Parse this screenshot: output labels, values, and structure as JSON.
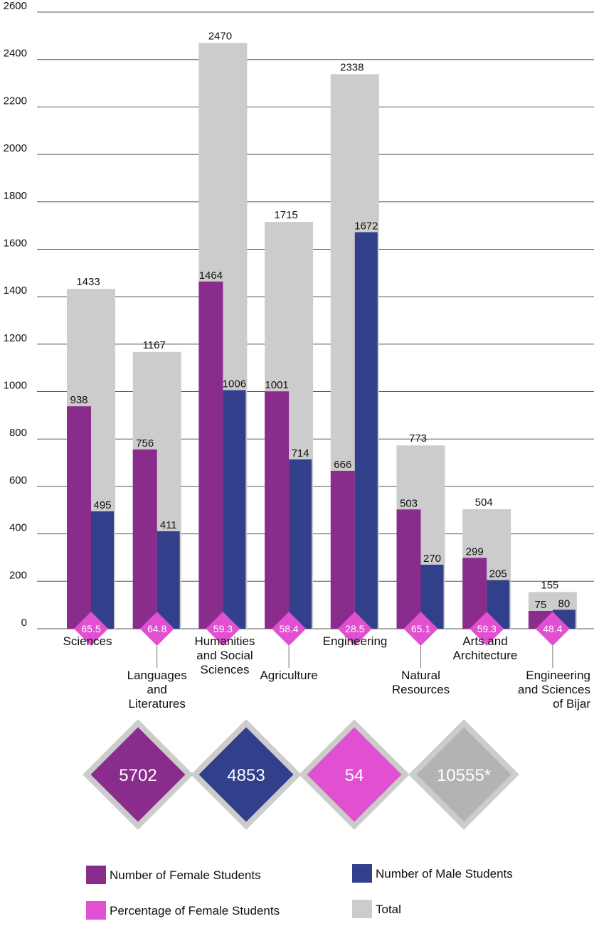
{
  "chart_data": {
    "type": "bar",
    "ylim": [
      0,
      2600
    ],
    "y_ticks": [
      "0",
      "200",
      "400",
      "600",
      "800",
      "1000",
      "1200",
      "1400",
      "1600",
      "1800",
      "2000",
      "2200",
      "2400",
      "2600"
    ],
    "grid": true,
    "categories": [
      [
        "Sciences"
      ],
      [
        "Languages",
        "and",
        "Literatures"
      ],
      [
        "Humanities",
        "and Social",
        "Sciences"
      ],
      [
        "Agriculture"
      ],
      [
        "Engineering"
      ],
      [
        "Natural",
        "Resources"
      ],
      [
        "Arts and",
        "Architecture"
      ],
      [
        "Engineering",
        "and Sciences",
        "of Bijar"
      ]
    ],
    "series": [
      {
        "name": "Total",
        "values": [
          1433,
          1167,
          2470,
          1715,
          2338,
          773,
          504,
          155
        ]
      },
      {
        "name": "Number of Female Students",
        "values": [
          938,
          756,
          1464,
          1001,
          666,
          503,
          299,
          75
        ]
      },
      {
        "name": "Number of Male Students",
        "values": [
          495,
          411,
          1006,
          714,
          1672,
          270,
          205,
          80
        ]
      },
      {
        "name": "Percentage of Female Students",
        "values": [
          "65.5",
          "64.8",
          "59.3",
          "58.4",
          "28.5",
          "65.1",
          "59.3",
          "48.4"
        ]
      }
    ],
    "totals": [
      {
        "value": "5702",
        "series": "Number of Female Students"
      },
      {
        "value": "4853",
        "series": "Number of Male Students"
      },
      {
        "value": "54",
        "series": "Percentage of Female Students"
      },
      {
        "value": "10555*",
        "series": "Total"
      }
    ],
    "legend_position": "bottom"
  },
  "colors": {
    "female": "#8a2c8c",
    "male": "#323f8a",
    "percent": "#e050d0",
    "total": "#cccccc",
    "total_diamond": "#b3b3b3",
    "diamond_border": "#cccccc",
    "grid": "#555555"
  },
  "legend": [
    {
      "label": "Number of Female Students",
      "color": "#8a2c8c"
    },
    {
      "label": "Number of Male Students",
      "color": "#323f8a"
    },
    {
      "label": "Percentage of Female Students",
      "color": "#e050d0"
    },
    {
      "label": "Total",
      "color": "#cccccc"
    }
  ]
}
